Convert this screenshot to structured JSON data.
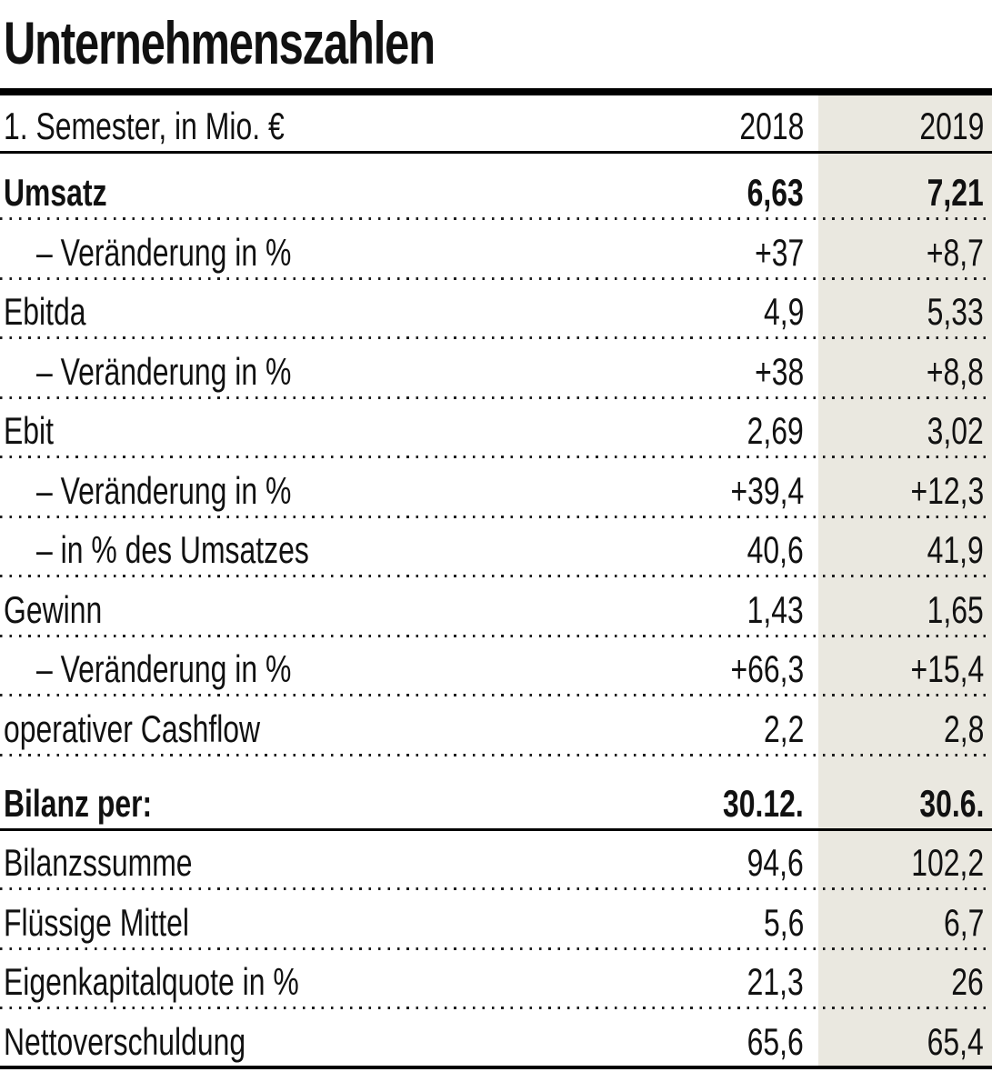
{
  "title": "Unternehmenszahlen",
  "chart_data": {
    "type": "table",
    "title": "Unternehmenszahlen",
    "unit_header": "1. Semester, in Mio. €",
    "columns": [
      "2018",
      "2019"
    ],
    "highlight_column": "2019",
    "highlight_color": "#eae8e0",
    "text_color": "#111111",
    "rows": [
      {
        "label": "Umsatz",
        "v2018": "6,63",
        "v2019": "7,21",
        "bold": true
      },
      {
        "label": "– Veränderung in %",
        "v2018": "+37",
        "v2019": "+8,7",
        "indent": true
      },
      {
        "label": "Ebitda",
        "v2018": "4,9",
        "v2019": "5,33"
      },
      {
        "label": "– Veränderung in %",
        "v2018": "+38",
        "v2019": "+8,8",
        "indent": true
      },
      {
        "label": "Ebit",
        "v2018": "2,69",
        "v2019": "3,02"
      },
      {
        "label": "– Veränderung in %",
        "v2018": "+39,4",
        "v2019": "+12,3",
        "indent": true
      },
      {
        "label": "– in % des Umsatzes",
        "v2018": "40,6",
        "v2019": "41,9",
        "indent": true
      },
      {
        "label": "Gewinn",
        "v2018": "1,43",
        "v2019": "1,65"
      },
      {
        "label": "– Veränderung in %",
        "v2018": "+66,3",
        "v2019": "+15,4",
        "indent": true
      },
      {
        "label": "operativer Cashflow",
        "v2018": "2,2",
        "v2019": "2,8"
      },
      {
        "label": "Bilanz per:",
        "v2018": "30.12.",
        "v2019": "30.6.",
        "bold": true
      },
      {
        "label": "Bilanzssumme",
        "v2018": "94,6",
        "v2019": "102,2"
      },
      {
        "label": "Flüssige Mittel",
        "v2018": "5,6",
        "v2019": "6,7"
      },
      {
        "label": "Eigenkapitalquote in %",
        "v2018": "21,3",
        "v2019": "26"
      },
      {
        "label": "Nettoverschuldung",
        "v2018": "65,6",
        "v2019": "65,4"
      }
    ]
  }
}
